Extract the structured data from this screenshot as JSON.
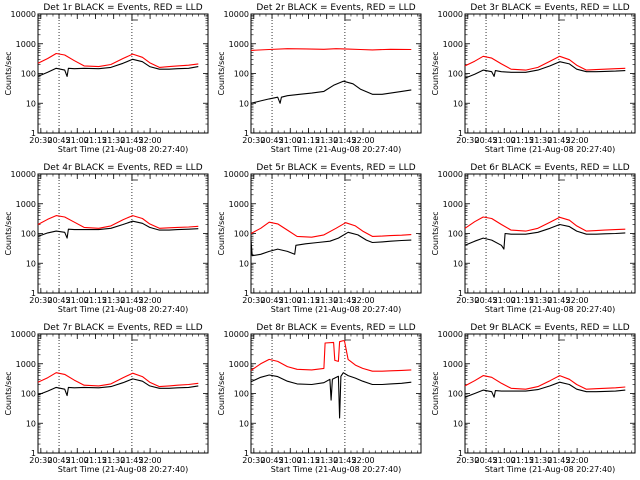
{
  "chart_data": [
    {
      "type": "line",
      "title": "Det 1r BLACK = Events, RED = LLD",
      "xlabel": "Start Time (21-Aug-08 20:27:40)",
      "ylabel": "Counts/sec",
      "yscale": "log",
      "ylim": [
        1,
        10000
      ],
      "x_ticks": [
        "20:30",
        "20:45",
        "21:00",
        "21:15",
        "21:30",
        "21:45",
        "22:00"
      ],
      "y_ticks": [
        "1",
        "10",
        "100",
        "1000",
        "10000"
      ],
      "vlines": [
        "20:45",
        "21:45"
      ],
      "series": [
        {
          "color": "#ff0000",
          "x": [
            0,
            8,
            15,
            22,
            30,
            38,
            50,
            60,
            70,
            78,
            86,
            92,
            100,
            108,
            115,
            124,
            132
          ],
          "y": [
            220,
            320,
            470,
            420,
            270,
            180,
            170,
            200,
            320,
            450,
            350,
            230,
            160,
            170,
            180,
            190,
            210
          ]
        },
        {
          "color": "#000000",
          "x": [
            0,
            8,
            15,
            22,
            24,
            25,
            30,
            38,
            50,
            60,
            70,
            78,
            86,
            92,
            100,
            108,
            115,
            124,
            132
          ],
          "y": [
            80,
            110,
            150,
            130,
            80,
            150,
            145,
            150,
            145,
            160,
            220,
            300,
            250,
            170,
            140,
            140,
            145,
            150,
            170
          ]
        }
      ]
    },
    {
      "type": "line",
      "title": "Det 2r BLACK = Events, RED = LLD",
      "xlabel": "Start Time (21-Aug-08 20:27:40)",
      "ylabel": "Counts/sec",
      "yscale": "log",
      "ylim": [
        1,
        10000
      ],
      "x_ticks": [
        "20:30",
        "20:45",
        "21:00",
        "21:15",
        "21:30",
        "21:45",
        "22:00"
      ],
      "y_ticks": [
        "1",
        "10",
        "100",
        "1000",
        "10000"
      ],
      "vlines": [
        "20:45",
        "21:45"
      ],
      "series": [
        {
          "color": "#ff0000",
          "x": [
            0,
            15,
            30,
            45,
            60,
            70,
            80,
            90,
            100,
            115,
            132
          ],
          "y": [
            600,
            640,
            680,
            670,
            650,
            680,
            660,
            640,
            620,
            650,
            640
          ]
        },
        {
          "color": "#000000",
          "x": [
            0,
            8,
            15,
            22,
            24,
            25,
            30,
            40,
            50,
            60,
            68,
            76,
            84,
            90,
            100,
            108,
            115,
            124,
            132
          ],
          "y": [
            10,
            12,
            14,
            16,
            10,
            16,
            18,
            20,
            22,
            25,
            40,
            55,
            45,
            30,
            20,
            20,
            22,
            25,
            28
          ]
        }
      ]
    },
    {
      "type": "line",
      "title": "Det 3r BLACK = Events, RED = LLD",
      "xlabel": "Start Time (21-Aug-08 20:27:40)",
      "ylabel": "Counts/sec",
      "yscale": "log",
      "ylim": [
        1,
        10000
      ],
      "x_ticks": [
        "20:30",
        "20:45",
        "21:00",
        "21:15",
        "21:30",
        "21:45",
        "22:00"
      ],
      "y_ticks": [
        "1",
        "10",
        "100",
        "1000",
        "10000"
      ],
      "vlines": [
        "20:45",
        "21:45"
      ],
      "series": [
        {
          "color": "#ff0000",
          "x": [
            0,
            8,
            15,
            22,
            30,
            38,
            50,
            60,
            70,
            78,
            86,
            92,
            100,
            108,
            115,
            124,
            132
          ],
          "y": [
            180,
            260,
            380,
            330,
            210,
            140,
            130,
            160,
            260,
            380,
            290,
            190,
            130,
            135,
            140,
            145,
            150
          ]
        },
        {
          "color": "#000000",
          "x": [
            0,
            8,
            15,
            22,
            24,
            25,
            30,
            38,
            50,
            60,
            70,
            78,
            86,
            92,
            100,
            108,
            115,
            124,
            132
          ],
          "y": [
            70,
            95,
            130,
            115,
            80,
            125,
            115,
            110,
            110,
            130,
            180,
            250,
            210,
            140,
            115,
            115,
            118,
            120,
            125
          ]
        }
      ]
    },
    {
      "type": "line",
      "title": "Det 4r BLACK = Events, RED = LLD",
      "xlabel": "Start Time (21-Aug-08 20:27:40)",
      "ylabel": "Counts/sec",
      "yscale": "log",
      "ylim": [
        1,
        10000
      ],
      "x_ticks": [
        "20:30",
        "20:45",
        "21:00",
        "21:15",
        "21:30",
        "21:45",
        "22:00"
      ],
      "y_ticks": [
        "1",
        "10",
        "100",
        "1000",
        "10000"
      ],
      "vlines": [
        "20:45",
        "21:45"
      ],
      "series": [
        {
          "color": "#ff0000",
          "x": [
            0,
            8,
            15,
            22,
            30,
            38,
            50,
            60,
            70,
            78,
            86,
            92,
            100,
            108,
            115,
            124,
            132
          ],
          "y": [
            200,
            300,
            400,
            360,
            240,
            160,
            150,
            180,
            290,
            400,
            320,
            210,
            150,
            155,
            160,
            165,
            175
          ]
        },
        {
          "color": "#000000",
          "x": [
            0,
            8,
            15,
            22,
            24,
            25,
            30,
            38,
            50,
            60,
            70,
            78,
            86,
            92,
            100,
            108,
            115,
            124,
            132
          ],
          "y": [
            80,
            105,
            120,
            110,
            70,
            140,
            135,
            135,
            135,
            150,
            200,
            260,
            220,
            160,
            130,
            130,
            135,
            140,
            145
          ]
        }
      ]
    },
    {
      "type": "line",
      "title": "Det 5r BLACK = Events, RED = LLD",
      "xlabel": "Start Time (21-Aug-08 20:27:40)",
      "ylabel": "Counts/sec",
      "yscale": "log",
      "ylim": [
        1,
        10000
      ],
      "x_ticks": [
        "20:30",
        "20:45",
        "21:00",
        "21:15",
        "21:30",
        "21:45",
        "22:00"
      ],
      "y_ticks": [
        "1",
        "10",
        "100",
        "1000",
        "10000"
      ],
      "vlines": [
        "20:45",
        "21:45"
      ],
      "series": [
        {
          "color": "#ff0000",
          "x": [
            0,
            8,
            15,
            22,
            30,
            38,
            50,
            60,
            70,
            78,
            86,
            92,
            100,
            108,
            115,
            124,
            132
          ],
          "y": [
            100,
            150,
            240,
            210,
            130,
            80,
            75,
            90,
            150,
            230,
            180,
            120,
            80,
            82,
            85,
            88,
            92
          ]
        },
        {
          "color": "#000000",
          "x": [
            0,
            1,
            8,
            15,
            22,
            30,
            36,
            37,
            45,
            55,
            65,
            72,
            80,
            88,
            95,
            100,
            108,
            115,
            124,
            132
          ],
          "y": [
            60,
            18,
            20,
            25,
            30,
            25,
            20,
            40,
            45,
            50,
            55,
            70,
            110,
            90,
            60,
            50,
            52,
            55,
            58,
            60
          ]
        }
      ]
    },
    {
      "type": "line",
      "title": "Det 6r BLACK = Events, RED = LLD",
      "xlabel": "Start Time (21-Aug-08 20:27:40)",
      "ylabel": "Counts/sec",
      "yscale": "log",
      "ylim": [
        1,
        10000
      ],
      "x_ticks": [
        "20:30",
        "20:45",
        "21:00",
        "21:15",
        "21:30",
        "21:45",
        "22:00"
      ],
      "y_ticks": [
        "1",
        "10",
        "100",
        "1000",
        "10000"
      ],
      "vlines": [
        "20:45",
        "21:45"
      ],
      "series": [
        {
          "color": "#ff0000",
          "x": [
            0,
            8,
            15,
            22,
            30,
            38,
            50,
            60,
            70,
            78,
            86,
            92,
            100,
            108,
            115,
            124,
            132
          ],
          "y": [
            150,
            250,
            360,
            320,
            200,
            130,
            120,
            150,
            240,
            350,
            280,
            180,
            120,
            125,
            130,
            135,
            140
          ]
        },
        {
          "color": "#000000",
          "x": [
            0,
            8,
            15,
            22,
            30,
            32,
            33,
            38,
            50,
            60,
            70,
            78,
            86,
            92,
            100,
            108,
            115,
            124,
            132
          ],
          "y": [
            40,
            55,
            70,
            60,
            40,
            30,
            100,
            95,
            95,
            110,
            150,
            200,
            170,
            120,
            95,
            95,
            98,
            100,
            105
          ]
        }
      ]
    },
    {
      "type": "line",
      "title": "Det 7r BLACK = Events, RED = LLD",
      "xlabel": "Start Time (21-Aug-08 20:27:40)",
      "ylabel": "Counts/sec",
      "yscale": "log",
      "ylim": [
        1,
        10000
      ],
      "x_ticks": [
        "20:30",
        "20:45",
        "21:00",
        "21:15",
        "21:30",
        "21:45",
        "22:00"
      ],
      "y_ticks": [
        "1",
        "10",
        "100",
        "1000",
        "10000"
      ],
      "vlines": [
        "20:45",
        "21:45"
      ],
      "series": [
        {
          "color": "#ff0000",
          "x": [
            0,
            8,
            15,
            22,
            30,
            38,
            50,
            60,
            70,
            78,
            86,
            92,
            100,
            108,
            115,
            124,
            132
          ],
          "y": [
            240,
            340,
            500,
            440,
            280,
            190,
            180,
            210,
            340,
            480,
            370,
            240,
            170,
            180,
            190,
            200,
            220
          ]
        },
        {
          "color": "#000000",
          "x": [
            0,
            8,
            15,
            22,
            24,
            25,
            30,
            38,
            50,
            60,
            70,
            78,
            86,
            92,
            100,
            108,
            115,
            124,
            132
          ],
          "y": [
            90,
            120,
            160,
            140,
            85,
            160,
            155,
            160,
            155,
            170,
            230,
            310,
            260,
            180,
            150,
            150,
            155,
            160,
            180
          ]
        }
      ]
    },
    {
      "type": "line",
      "title": "Det 8r BLACK = Events, RED = LLD",
      "xlabel": "Start Time (21-Aug-08 20:27:40)",
      "ylabel": "Counts/sec",
      "yscale": "log",
      "ylim": [
        1,
        10000
      ],
      "x_ticks": [
        "20:30",
        "20:45",
        "21:00",
        "21:15",
        "21:30",
        "21:45",
        "22:00"
      ],
      "y_ticks": [
        "1",
        "10",
        "100",
        "1000",
        "10000"
      ],
      "vlines": [
        "20:45",
        "21:45"
      ],
      "series": [
        {
          "color": "#ff0000",
          "x": [
            0,
            8,
            15,
            22,
            30,
            38,
            50,
            60,
            61,
            68,
            69,
            72,
            73,
            76,
            77,
            80,
            86,
            92,
            100,
            108,
            115,
            124,
            132
          ],
          "y": [
            600,
            1000,
            1400,
            1200,
            800,
            650,
            620,
            700,
            5000,
            5200,
            1300,
            1200,
            5500,
            6000,
            5800,
            1400,
            900,
            700,
            560,
            560,
            580,
            600,
            620
          ]
        },
        {
          "color": "#000000",
          "x": [
            0,
            8,
            15,
            22,
            30,
            38,
            50,
            60,
            65,
            66,
            67,
            72,
            73,
            74,
            76,
            80,
            86,
            92,
            100,
            108,
            115,
            124,
            132
          ],
          "y": [
            250,
            350,
            420,
            370,
            260,
            210,
            200,
            230,
            300,
            60,
            300,
            380,
            15,
            380,
            500,
            400,
            330,
            260,
            200,
            200,
            210,
            220,
            240
          ]
        }
      ]
    },
    {
      "type": "line",
      "title": "Det 9r BLACK = Events, RED = LLD",
      "xlabel": "Start Time (21-Aug-08 20:27:40)",
      "ylabel": "Counts/sec",
      "yscale": "log",
      "ylim": [
        1,
        10000
      ],
      "x_ticks": [
        "20:30",
        "20:45",
        "21:00",
        "21:15",
        "21:30",
        "21:45",
        "22:00"
      ],
      "y_ticks": [
        "1",
        "10",
        "100",
        "1000",
        "10000"
      ],
      "vlines": [
        "20:45",
        "21:45"
      ],
      "series": [
        {
          "color": "#ff0000",
          "x": [
            0,
            8,
            15,
            22,
            30,
            38,
            50,
            60,
            70,
            78,
            86,
            92,
            100,
            108,
            115,
            124,
            132
          ],
          "y": [
            180,
            270,
            400,
            350,
            220,
            150,
            140,
            170,
            270,
            400,
            300,
            200,
            140,
            145,
            150,
            155,
            165
          ]
        },
        {
          "color": "#000000",
          "x": [
            0,
            8,
            15,
            22,
            24,
            25,
            30,
            38,
            50,
            60,
            70,
            78,
            86,
            92,
            100,
            108,
            115,
            124,
            132
          ],
          "y": [
            75,
            100,
            130,
            115,
            75,
            125,
            120,
            120,
            120,
            135,
            180,
            240,
            200,
            140,
            115,
            115,
            118,
            120,
            130
          ]
        }
      ]
    }
  ]
}
